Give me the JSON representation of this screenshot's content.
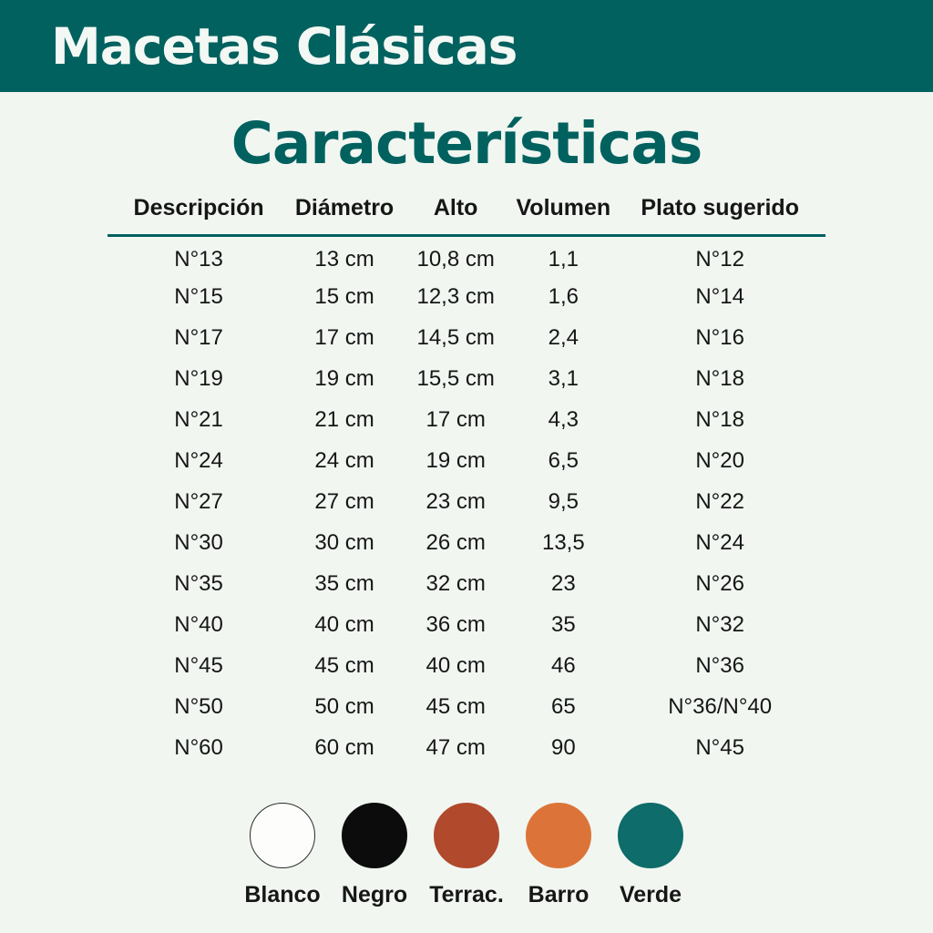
{
  "header": {
    "title": "Macetas Clásicas"
  },
  "main": {
    "title": "Características"
  },
  "table": {
    "columns": [
      "Descripción",
      "Diámetro",
      "Alto",
      "Volumen",
      "Plato sugerido"
    ],
    "column_widths": [
      "25.4%",
      "15.2%",
      "15.8%",
      "14.2%",
      "29.4%"
    ],
    "rows": [
      [
        "N°13",
        "13 cm",
        "10,8 cm",
        "1,1",
        "N°12"
      ],
      [
        "N°15",
        "15 cm",
        "12,3 cm",
        "1,6",
        "N°14"
      ],
      [
        "N°17",
        "17 cm",
        "14,5 cm",
        "2,4",
        "N°16"
      ],
      [
        "N°19",
        "19 cm",
        "15,5 cm",
        "3,1",
        "N°18"
      ],
      [
        "N°21",
        "21 cm",
        "17 cm",
        "4,3",
        "N°18"
      ],
      [
        "N°24",
        "24 cm",
        "19 cm",
        "6,5",
        "N°20"
      ],
      [
        "N°27",
        "27 cm",
        "23 cm",
        "9,5",
        "N°22"
      ],
      [
        "N°30",
        "30 cm",
        "26 cm",
        "13,5",
        "N°24"
      ],
      [
        "N°35",
        "35 cm",
        "32 cm",
        "23",
        "N°26"
      ],
      [
        "N°40",
        "40 cm",
        "36 cm",
        "35",
        "N°32"
      ],
      [
        "N°45",
        "45 cm",
        "40 cm",
        "46",
        "N°36"
      ],
      [
        "N°50",
        "50 cm",
        "45 cm",
        "65",
        "N°36/N°40"
      ],
      [
        "N°60",
        "60 cm",
        "47 cm",
        "90",
        "N°45"
      ]
    ]
  },
  "legend": {
    "items": [
      {
        "name": "blanco",
        "label": "Blanco",
        "color": "#FDFEFC",
        "border": "#2B2B2B"
      },
      {
        "name": "negro",
        "label": "Negro",
        "color": "#0C0C0C",
        "border": "#0C0C0C"
      },
      {
        "name": "terracota",
        "label": "Terrac.",
        "color": "#B1492D",
        "border": "#B1492D"
      },
      {
        "name": "barro",
        "label": "Barro",
        "color": "#DC7439",
        "border": "#DC7439"
      },
      {
        "name": "verde",
        "label": "Verde",
        "color": "#0E6C6A",
        "border": "#0E6C6A"
      }
    ]
  },
  "colors": {
    "header_background": "#00615F",
    "page_background": "#F1F6F1",
    "accent": "#00615F",
    "text": "#161616",
    "header_text": "#F3F8F4"
  }
}
